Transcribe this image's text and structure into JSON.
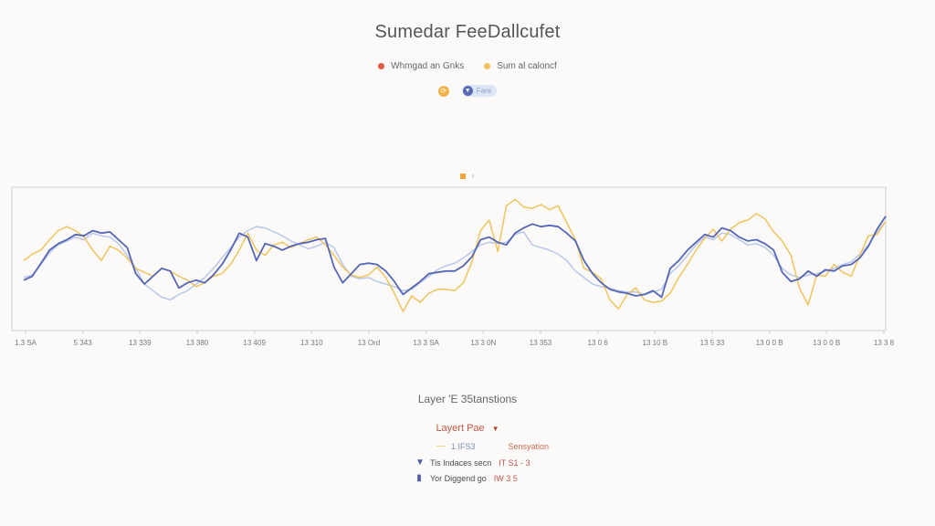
{
  "title": "Sumedar FeeDallcufet",
  "legend": [
    {
      "label": "Whmgad an Gnks",
      "color": "#e05a3f"
    },
    {
      "label": "Sum al caloncf",
      "color": "#f1c25a"
    }
  ],
  "controls": {
    "refresh_icon": "refresh-icon",
    "toggle_label": "Fare"
  },
  "marker_label": "ı",
  "colors": {
    "blue": "#5466b5",
    "yellow": "#efc45e",
    "lightblue": "#b9c7ea",
    "axis": "#cfcfd4"
  },
  "chart_data": {
    "type": "line",
    "x_tick_labels": [
      "1.3 SA",
      "5 343",
      "13 339",
      "13 380",
      "13 409",
      "13 310",
      "13 Ord",
      "13 3 SA",
      "13 3 0N",
      "13 353",
      "13 0 6",
      "13 10 B",
      "13 5 33",
      "13 0 0 B",
      "13 0 0 B",
      "13 3 8"
    ],
    "ylim": [
      0,
      100
    ],
    "grid": false,
    "series": [
      {
        "color": "#5466b5",
        "values": [
          33,
          36,
          46,
          56,
          61,
          64,
          68,
          67,
          71,
          69,
          70,
          64,
          58,
          38,
          30,
          36,
          42,
          40,
          27,
          31,
          33,
          31,
          37,
          45,
          56,
          69,
          66,
          48,
          61,
          59,
          56,
          59,
          61,
          62,
          64,
          65,
          43,
          31,
          38,
          45,
          46,
          45,
          40,
          32,
          22,
          27,
          32,
          38,
          39,
          40,
          40,
          44,
          51,
          64,
          66,
          62,
          60,
          69,
          73,
          76,
          74,
          75,
          74,
          69,
          63,
          48,
          38,
          31,
          26,
          24,
          23,
          21,
          22,
          25,
          20,
          42,
          48,
          56,
          62,
          68,
          66,
          73,
          71,
          66,
          63,
          64,
          61,
          56,
          39,
          32,
          34,
          40,
          36,
          41,
          40,
          44,
          45,
          50,
          59,
          72,
          82
        ]
      },
      {
        "color": "#efc45e",
        "values": [
          48,
          53,
          56,
          64,
          71,
          74,
          71,
          66,
          56,
          48,
          59,
          56,
          50,
          42,
          39,
          36,
          42,
          40,
          36,
          33,
          28,
          31,
          36,
          38,
          45,
          56,
          69,
          56,
          52,
          60,
          62,
          58,
          61,
          64,
          66,
          60,
          52,
          43,
          37,
          35,
          37,
          43,
          35,
          23,
          9,
          21,
          16,
          23,
          26,
          26,
          25,
          31,
          47,
          71,
          79,
          55,
          90,
          95,
          89,
          88,
          91,
          87,
          90,
          77,
          64,
          42,
          39,
          34,
          18,
          11,
          22,
          27,
          18,
          16,
          17,
          23,
          35,
          45,
          56,
          65,
          72,
          63,
          72,
          77,
          79,
          84,
          80,
          70,
          63,
          52,
          27,
          14,
          37,
          36,
          45,
          39,
          36,
          52,
          67,
          68,
          78
        ]
      },
      {
        "color": "#b9c7ea",
        "values": [
          35,
          37,
          45,
          54,
          60,
          63,
          66,
          64,
          69,
          67,
          66,
          61,
          52,
          42,
          30,
          25,
          20,
          18,
          22,
          25,
          30,
          35,
          42,
          50,
          58,
          66,
          71,
          74,
          73,
          70,
          67,
          63,
          60,
          57,
          59,
          62,
          58,
          45,
          36,
          34,
          35,
          32,
          30,
          28,
          25,
          26,
          31,
          36,
          41,
          44,
          46,
          50,
          55,
          60,
          62,
          61,
          62,
          68,
          70,
          60,
          58,
          56,
          53,
          48,
          40,
          35,
          30,
          28,
          27,
          25,
          24,
          24,
          22,
          24,
          26,
          38,
          44,
          52,
          60,
          66,
          64,
          69,
          68,
          64,
          60,
          61,
          58,
          52,
          42,
          37,
          35,
          37,
          38,
          40,
          42,
          45,
          47,
          53,
          60,
          70,
          78
        ]
      }
    ]
  },
  "bottom": {
    "title": "Layer 'E 35tanstions",
    "dropdown_label": "Layert Pae",
    "layer_badge": "1 IFS3",
    "layer_status": "Sensyation",
    "info_rows": [
      {
        "text": "Tis Indaces secn",
        "num": "IT S1 - 3"
      },
      {
        "text": "Yor Diggend go",
        "num": "IW 3 5"
      }
    ]
  }
}
